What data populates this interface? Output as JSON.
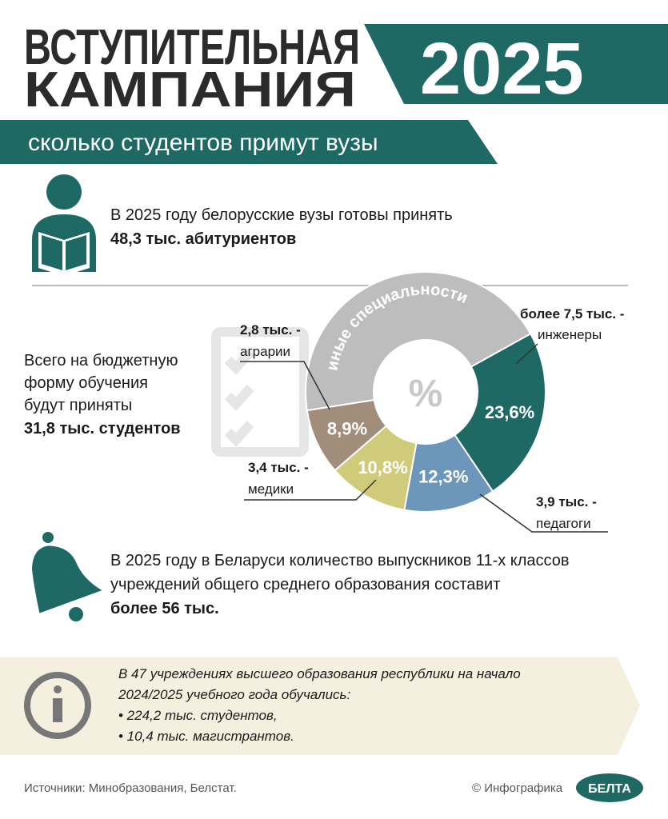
{
  "header": {
    "title_line1": "ВСТУПИТЕЛЬНАЯ",
    "title_line2": "КАМПАНИЯ",
    "year": "2025",
    "subtitle": "сколько студентов примут вузы"
  },
  "admission": {
    "text": "В 2025 году белорусские вузы готовы принять",
    "bold": "48,3 тыс. абитуриентов"
  },
  "budget": {
    "lines": [
      "Всего на бюджетную",
      "форму обучения",
      "будут приняты"
    ],
    "bold": "31,8 тыс. студентов"
  },
  "chart_data": {
    "type": "donut",
    "center_label": "%",
    "categories": [
      "инженеры",
      "педагоги",
      "медики",
      "аграрии",
      "иные специальности"
    ],
    "values": [
      23.6,
      12.3,
      10.8,
      8.9,
      44.4
    ],
    "value_labels": [
      "23,6%",
      "12,3%",
      "10,8%",
      "8,9%",
      null
    ],
    "amounts": [
      "более 7,5 тыс. -",
      "3,9 тыс. -",
      "3,4 тыс. -",
      "2,8 тыс. -",
      null
    ],
    "colors": [
      "#1e6964",
      "#6c96ba",
      "#cfcb7a",
      "#a28d7a",
      "#bdbdbd"
    ]
  },
  "graduates": {
    "lines": [
      "В 2025 году в Беларуси количество выпускников 11-х классов",
      "учреждений общего среднего образования составит"
    ],
    "bold": "более 56 тыс."
  },
  "info": {
    "lines": [
      "В 47 учреждениях высшего образования республики на начало",
      "2024/2025 учебного года обучались:",
      "• 224,2 тыс. студентов,",
      "• 10,4 тыс. магистрантов."
    ]
  },
  "footer": {
    "sources": "Источники: Минобразования, Белстат.",
    "credit": "© Инфографика",
    "logo": "БЕЛТА"
  }
}
